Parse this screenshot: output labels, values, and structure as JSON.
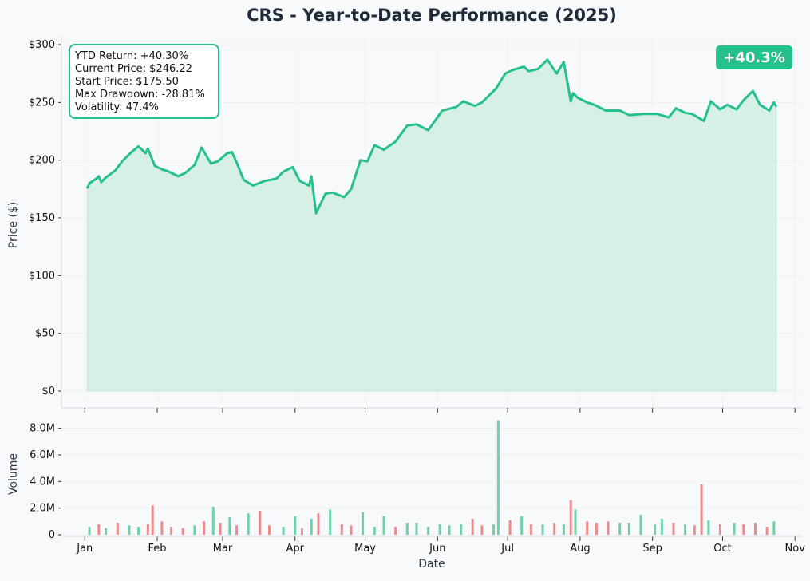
{
  "colors": {
    "line": "#26c08c",
    "fill": "#d6f0e6",
    "volume_up": "#6fd1aa",
    "volume_down": "#ee8a8a",
    "badge": "#26c08c",
    "text": "#1f2a3a",
    "background": "#f8f9fb"
  },
  "stats_box": {
    "ytd_return": "YTD Return: +40.30%",
    "current_price": "Current Price: $246.22",
    "start_price": "Start Price: $175.50",
    "max_drawdown": "Max Drawdown: -28.81%",
    "volatility": "Volatility: 47.4%"
  },
  "badge": "+40.3%",
  "chart_data": [
    {
      "type": "area",
      "title": "CRS - Year-to-Date Performance (2025)",
      "ylabel": "Price ($)",
      "xlabel": "",
      "ylim": [
        0,
        300
      ],
      "xlim": [
        "2024-12-22",
        "2025-11-04"
      ],
      "y_ticks": [
        0,
        50,
        100,
        150,
        200,
        250,
        300
      ],
      "y_tick_labels": [
        "$0",
        "$50",
        "$100",
        "$150",
        "$200",
        "$250",
        "$300"
      ],
      "grid": true,
      "series": [
        {
          "x": [
            "2025-01-02",
            "2025-01-03",
            "2025-01-06",
            "2025-01-07",
            "2025-01-08",
            "2025-01-10",
            "2025-01-14",
            "2025-01-17",
            "2025-01-21",
            "2025-01-24",
            "2025-01-27",
            "2025-01-28",
            "2025-01-29",
            "2025-01-31",
            "2025-02-03",
            "2025-02-06",
            "2025-02-10",
            "2025-02-13",
            "2025-02-17",
            "2025-02-20",
            "2025-02-24",
            "2025-02-27",
            "2025-03-03",
            "2025-03-05",
            "2025-03-07",
            "2025-03-10",
            "2025-03-14",
            "2025-03-19",
            "2025-03-24",
            "2025-03-27",
            "2025-03-31",
            "2025-04-03",
            "2025-04-07",
            "2025-04-08",
            "2025-04-10",
            "2025-04-14",
            "2025-04-17",
            "2025-04-22",
            "2025-04-25",
            "2025-04-29",
            "2025-05-02",
            "2025-05-05",
            "2025-05-09",
            "2025-05-14",
            "2025-05-19",
            "2025-05-23",
            "2025-05-28",
            "2025-06-03",
            "2025-06-09",
            "2025-06-12",
            "2025-06-17",
            "2025-06-20",
            "2025-06-23",
            "2025-06-26",
            "2025-06-30",
            "2025-07-03",
            "2025-07-08",
            "2025-07-10",
            "2025-07-14",
            "2025-07-18",
            "2025-07-22",
            "2025-07-25",
            "2025-07-28",
            "2025-07-29",
            "2025-07-31",
            "2025-08-04",
            "2025-08-07",
            "2025-08-12",
            "2025-08-18",
            "2025-08-22",
            "2025-08-28",
            "2025-09-03",
            "2025-09-08",
            "2025-09-11",
            "2025-09-15",
            "2025-09-18",
            "2025-09-23",
            "2025-09-26",
            "2025-09-30",
            "2025-10-03",
            "2025-10-07",
            "2025-10-10",
            "2025-10-14",
            "2025-10-17",
            "2025-10-21",
            "2025-10-23",
            "2025-10-24"
          ],
          "values": [
            175.5,
            180,
            184,
            186,
            181,
            185,
            191,
            199,
            207,
            212,
            206,
            210,
            205,
            195,
            192,
            190,
            186,
            189,
            196,
            211,
            197,
            199,
            206,
            207,
            198,
            183,
            178,
            182,
            184,
            190,
            194,
            182,
            178,
            186,
            154,
            171,
            172,
            168,
            175,
            200,
            199,
            213,
            209,
            216,
            230,
            231,
            226,
            243,
            246,
            251,
            247,
            250,
            256,
            262,
            275,
            278,
            281,
            277,
            279,
            287,
            275,
            285,
            251,
            258,
            254,
            250,
            248,
            243,
            243,
            239,
            240,
            240,
            237,
            245,
            241,
            240,
            234,
            251,
            244,
            248,
            244,
            252,
            260,
            248,
            243,
            250,
            246.22
          ]
        }
      ]
    },
    {
      "type": "bar",
      "title": "",
      "ylabel": "Volume",
      "xlabel": "Date",
      "ylim": [
        0,
        9000000
      ],
      "y_ticks": [
        0,
        2000000,
        4000000,
        6000000,
        8000000
      ],
      "y_tick_labels": [
        "0",
        "2.0M",
        "4.0M",
        "6.0M",
        "8.0M"
      ],
      "x_ticks": [
        "2025-01-01",
        "2025-02-01",
        "2025-03-01",
        "2025-04-01",
        "2025-05-01",
        "2025-06-01",
        "2025-07-01",
        "2025-08-01",
        "2025-09-01",
        "2025-10-01",
        "2025-11-01"
      ],
      "x_tick_labels": [
        "Jan",
        "Feb",
        "Mar",
        "Apr",
        "May",
        "Jun",
        "Jul",
        "Aug",
        "Sep",
        "Oct",
        "Nov"
      ],
      "grid": true,
      "series": [
        {
          "x": [
            "2025-01-03",
            "2025-01-07",
            "2025-01-10",
            "2025-01-15",
            "2025-01-20",
            "2025-01-24",
            "2025-01-28",
            "2025-01-30",
            "2025-02-03",
            "2025-02-07",
            "2025-02-12",
            "2025-02-17",
            "2025-02-21",
            "2025-02-25",
            "2025-02-28",
            "2025-03-04",
            "2025-03-07",
            "2025-03-12",
            "2025-03-17",
            "2025-03-21",
            "2025-03-27",
            "2025-04-01",
            "2025-04-04",
            "2025-04-08",
            "2025-04-11",
            "2025-04-16",
            "2025-04-21",
            "2025-04-25",
            "2025-04-30",
            "2025-05-05",
            "2025-05-09",
            "2025-05-14",
            "2025-05-19",
            "2025-05-23",
            "2025-05-28",
            "2025-06-02",
            "2025-06-06",
            "2025-06-11",
            "2025-06-16",
            "2025-06-20",
            "2025-06-25",
            "2025-06-27",
            "2025-07-02",
            "2025-07-07",
            "2025-07-11",
            "2025-07-16",
            "2025-07-21",
            "2025-07-25",
            "2025-07-28",
            "2025-07-30",
            "2025-08-04",
            "2025-08-08",
            "2025-08-13",
            "2025-08-18",
            "2025-08-22",
            "2025-08-27",
            "2025-09-02",
            "2025-09-05",
            "2025-09-10",
            "2025-09-15",
            "2025-09-19",
            "2025-09-22",
            "2025-09-25",
            "2025-09-30",
            "2025-10-06",
            "2025-10-10",
            "2025-10-15",
            "2025-10-20",
            "2025-10-23"
          ],
          "values": [
            600000,
            800000,
            500000,
            900000,
            700000,
            600000,
            800000,
            2200000,
            1000000,
            600000,
            500000,
            700000,
            1000000,
            2100000,
            900000,
            1300000,
            700000,
            1600000,
            1800000,
            700000,
            600000,
            1400000,
            500000,
            1200000,
            1600000,
            1900000,
            800000,
            700000,
            1700000,
            600000,
            1400000,
            600000,
            900000,
            900000,
            600000,
            800000,
            700000,
            800000,
            1200000,
            700000,
            800000,
            8600000,
            1100000,
            1400000,
            800000,
            800000,
            900000,
            800000,
            2600000,
            1900000,
            1000000,
            900000,
            1000000,
            900000,
            900000,
            1500000,
            800000,
            1200000,
            900000,
            800000,
            700000,
            3800000,
            1100000,
            800000,
            900000,
            800000,
            900000,
            600000,
            1000000
          ],
          "direction": [
            "up",
            "down",
            "up",
            "down",
            "up",
            "up",
            "down",
            "down",
            "down",
            "down",
            "down",
            "up",
            "down",
            "up",
            "down",
            "up",
            "down",
            "up",
            "down",
            "down",
            "up",
            "up",
            "down",
            "up",
            "down",
            "up",
            "down",
            "down",
            "up",
            "up",
            "up",
            "down",
            "up",
            "up",
            "up",
            "up",
            "up",
            "up",
            "down",
            "down",
            "up",
            "up",
            "down",
            "up",
            "down",
            "up",
            "down",
            "up",
            "down",
            "up",
            "down",
            "down",
            "down",
            "up",
            "up",
            "up",
            "up",
            "up",
            "down",
            "up",
            "down",
            "down",
            "up",
            "down",
            "up",
            "down",
            "down",
            "down",
            "up"
          ]
        }
      ]
    }
  ]
}
